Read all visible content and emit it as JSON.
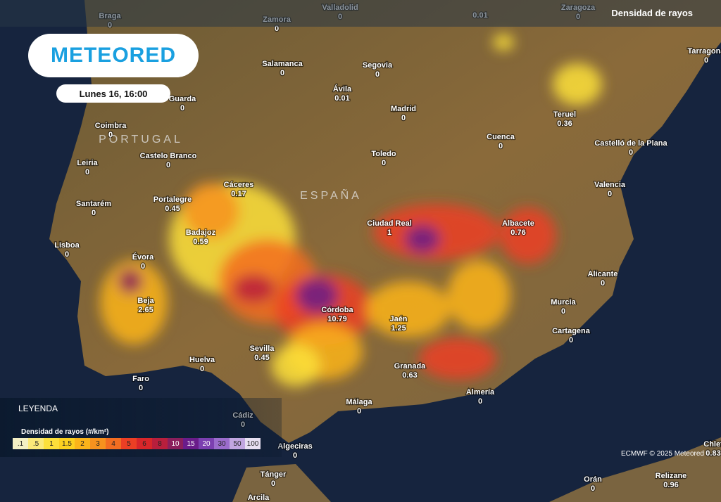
{
  "header": {
    "title": "Densidad de rayos"
  },
  "logo": "METEORED",
  "time": "Lunes 16, 16:00",
  "countries": [
    "PORTUGAL",
    "ESPAÑA"
  ],
  "cities": [
    {
      "name": "Braga",
      "value": 0
    },
    {
      "name": "Zamora",
      "value": 0
    },
    {
      "name": "Valladolid",
      "value": 0
    },
    {
      "value": 0.01
    },
    {
      "name": "Zaragoza",
      "value": 0
    },
    {
      "name": "Tarragona",
      "value": 0
    },
    {
      "name": "Guarda",
      "value": 0
    },
    {
      "name": "Salamanca",
      "value": 0
    },
    {
      "name": "Segovia",
      "value": 0
    },
    {
      "name": "Ávila",
      "value": 0.01
    },
    {
      "name": "Madrid",
      "value": 0
    },
    {
      "name": "Teruel",
      "value": 0.36
    },
    {
      "name": "Coimbra",
      "value": 0
    },
    {
      "name": "Cuenca",
      "value": 0
    },
    {
      "name": "Castelo Branco",
      "value": 0
    },
    {
      "name": "Toledo",
      "value": 0
    },
    {
      "name": "Castelló de la Plana",
      "value": 0
    },
    {
      "name": "Leiria",
      "value": 0
    },
    {
      "name": "Valencia",
      "value": 0
    },
    {
      "name": "Cáceres",
      "value": 0.17
    },
    {
      "name": "Portalegre",
      "value": 0.45
    },
    {
      "name": "Santarém",
      "value": 0
    },
    {
      "name": "Ciudad Real",
      "value": 1
    },
    {
      "name": "Albacete",
      "value": 0.76
    },
    {
      "name": "Badajoz",
      "value": 0.59
    },
    {
      "name": "Lisboa",
      "value": 0
    },
    {
      "name": "Évora",
      "value": 0
    },
    {
      "name": "Alicante",
      "value": 0
    },
    {
      "name": "Beja",
      "value": 2.65
    },
    {
      "name": "Murcia",
      "value": 0
    },
    {
      "name": "Córdoba",
      "value": 10.79
    },
    {
      "name": "Jaén",
      "value": 1.25
    },
    {
      "name": "Cartagena",
      "value": 0
    },
    {
      "name": "Sevilla",
      "value": 0.45
    },
    {
      "name": "Huelva",
      "value": 0
    },
    {
      "name": "Granada",
      "value": 0.63
    },
    {
      "name": "Faro",
      "value": 0
    },
    {
      "name": "Almería",
      "value": 0
    },
    {
      "name": "Málaga",
      "value": 0
    },
    {
      "name": "Cádiz",
      "value": 0
    },
    {
      "name": "Algeciras",
      "value": 0
    },
    {
      "name": "Tánger",
      "value": 0
    },
    {
      "name": "Orán",
      "value": 0
    },
    {
      "name": "Relizane",
      "value": 0.96
    },
    {
      "name": "Chlef",
      "value": 0.83
    },
    {
      "name": "Arcila"
    }
  ],
  "legend": {
    "title": "LEYENDA",
    "scale_title": "Densidad de rayos (#/km²)",
    "ticks": [
      {
        "value": 0.1,
        "label": ".1"
      },
      {
        "value": 0.5,
        "label": ".5"
      },
      1,
      1.5,
      2,
      3,
      4,
      5,
      6,
      8,
      10,
      15,
      20,
      30,
      50,
      100
    ],
    "colors": [
      "#f3efc4",
      "#fbe979",
      "#fde03a",
      "#fcd020",
      "#fbb41a",
      "#f7921e",
      "#f36d21",
      "#ec3f24",
      "#d8262a",
      "#b81f3c",
      "#8b1f5c",
      "#6a1c8a",
      "#7b3fb0",
      "#9b6ccc",
      "#c1a6e0",
      "#e8e0f2"
    ]
  },
  "credit": "ECMWF © 2025 Meteored"
}
